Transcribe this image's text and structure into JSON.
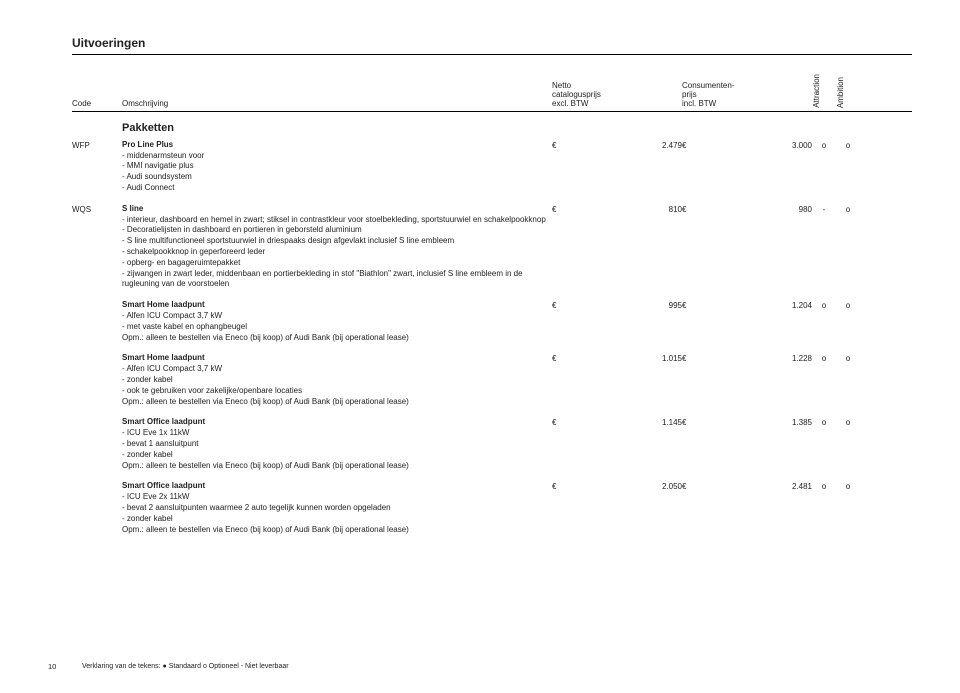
{
  "page": {
    "section": "Uitvoeringen",
    "group": "Pakketten",
    "number": "10",
    "legend": "Verklaring van de tekens: ● Standaard  o Optioneel  - Niet leverbaar"
  },
  "head": {
    "code": "Code",
    "desc": "Omschrijving",
    "netto1": "Netto",
    "netto2": "catalogusprijs",
    "netto3": "excl. BTW",
    "cons1": "Consumenten-",
    "cons2": "prijs",
    "cons3": "incl. BTW",
    "colA": "Attraction",
    "colB": "Ambition"
  },
  "items": [
    {
      "code": "WFP",
      "title": "Pro Line Plus",
      "lines": [
        "- middenarmsteun voor",
        "- MMI navigatie plus",
        "- Audi soundsystem",
        "- Audi Connect"
      ],
      "p1": "2.479",
      "p2": "3.000",
      "a": "o",
      "b": "o"
    },
    {
      "code": "WQS",
      "title": "S line",
      "lines": [
        "- interieur, dashboard en hemel in zwart; stiksel in contrastkleur voor stoelbekleding, sportstuurwiel en schakelpookknop",
        "- Decoratielijsten in dashboard en portieren in geborsteld aluminium",
        "- S line multifunctioneel sportstuurwiel in driespaaks design afgevlakt inclusief S line embleem",
        "- schakelpookknop in geperforeerd leder",
        "- opberg- en bagageruimtepakket",
        "- zijwangen in zwart leder, middenbaan en portierbekleding in stof \"Biathlon\" zwart, inclusief S line embleem in de rugleuning van de voorstoelen"
      ],
      "p1": "810",
      "p2": "980",
      "a": "-",
      "b": "o"
    },
    {
      "code": "",
      "title": "Smart Home laadpunt",
      "lines": [
        "- Alfen ICU Compact 3,7 kW",
        "- met vaste kabel en ophangbeugel",
        "Opm.:  alleen te bestellen via Eneco (bij koop) of Audi Bank (bij operational lease)"
      ],
      "p1": "995",
      "p2": "1.204",
      "a": "o",
      "b": "o"
    },
    {
      "code": "",
      "title": "Smart Home laadpunt",
      "lines": [
        "- Alfen ICU Compact 3,7 kW",
        "- zonder kabel",
        "- ook te gebruiken voor zakelijke/openbare locaties",
        "Opm.:  alleen te bestellen via Eneco (bij koop) of Audi Bank (bij operational lease)"
      ],
      "p1": "1.015",
      "p2": "1.228",
      "a": "o",
      "b": "o"
    },
    {
      "code": "",
      "title": "Smart Office laadpunt",
      "lines": [
        "- ICU Eve 1x 11kW",
        "- bevat 1 aansluitpunt",
        "- zonder kabel",
        "Opm.:  alleen te bestellen via Eneco (bij koop) of Audi Bank (bij operational lease)"
      ],
      "p1": "1.145",
      "p2": "1.385",
      "a": "o",
      "b": "o"
    },
    {
      "code": "",
      "title": "Smart Office laadpunt",
      "lines": [
        "- ICU Eve 2x 11kW",
        "- bevat 2 aansluitpunten waarmee 2 auto tegelijk kunnen worden opgeladen",
        "- zonder kabel",
        "Opm.:  alleen te bestellen via Eneco (bij koop) of Audi Bank (bij operational lease)"
      ],
      "p1": "2.050",
      "p2": "2.481",
      "a": "o",
      "b": "o"
    }
  ],
  "cur": "€"
}
